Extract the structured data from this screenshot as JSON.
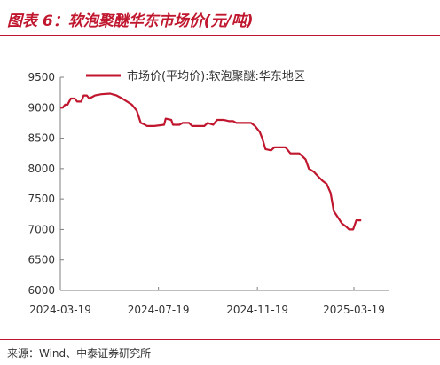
{
  "header": {
    "title": "图表 6：软泡聚醚华东市场价(元/吨)"
  },
  "footer": {
    "source": "来源：Wind、中泰证券研究所"
  },
  "colors": {
    "accent": "#c0172f",
    "line": "#c0172f",
    "axis": "#7f7f7f",
    "text": "#333333"
  },
  "chart_data": {
    "type": "line",
    "x_type": "date",
    "x_ticks": [
      "2024-03-19",
      "2024-07-19",
      "2024-11-19",
      "2025-03-19"
    ],
    "xlim": [
      "2024-03-19",
      "2025-05-01"
    ],
    "ylim": [
      6000,
      9500
    ],
    "y_ticks": [
      6000,
      6500,
      7000,
      7500,
      8000,
      8500,
      9000,
      9500
    ],
    "grid": false,
    "legend_position": "top",
    "series": [
      {
        "name": "市场价(平均价):软泡聚醚:华东地区",
        "points": [
          [
            "2024-03-19",
            9000
          ],
          [
            "2024-03-22",
            9000
          ],
          [
            "2024-03-25",
            9050
          ],
          [
            "2024-03-28",
            9050
          ],
          [
            "2024-04-01",
            9150
          ],
          [
            "2024-04-06",
            9150
          ],
          [
            "2024-04-09",
            9100
          ],
          [
            "2024-04-14",
            9100
          ],
          [
            "2024-04-17",
            9200
          ],
          [
            "2024-04-21",
            9200
          ],
          [
            "2024-04-24",
            9150
          ],
          [
            "2024-05-01",
            9200
          ],
          [
            "2024-05-09",
            9220
          ],
          [
            "2024-05-20",
            9230
          ],
          [
            "2024-05-28",
            9200
          ],
          [
            "2024-06-04",
            9150
          ],
          [
            "2024-06-10",
            9100
          ],
          [
            "2024-06-16",
            9050
          ],
          [
            "2024-06-22",
            8950
          ],
          [
            "2024-06-27",
            8750
          ],
          [
            "2024-07-01",
            8730
          ],
          [
            "2024-07-05",
            8700
          ],
          [
            "2024-07-14",
            8700
          ],
          [
            "2024-07-26",
            8720
          ],
          [
            "2024-07-28",
            8820
          ],
          [
            "2024-08-04",
            8800
          ],
          [
            "2024-08-06",
            8720
          ],
          [
            "2024-08-14",
            8720
          ],
          [
            "2024-08-18",
            8750
          ],
          [
            "2024-08-26",
            8750
          ],
          [
            "2024-08-30",
            8700
          ],
          [
            "2024-09-14",
            8700
          ],
          [
            "2024-09-18",
            8750
          ],
          [
            "2024-09-25",
            8720
          ],
          [
            "2024-09-30",
            8800
          ],
          [
            "2024-10-08",
            8800
          ],
          [
            "2024-10-15",
            8780
          ],
          [
            "2024-10-20",
            8780
          ],
          [
            "2024-10-24",
            8750
          ],
          [
            "2024-11-11",
            8750
          ],
          [
            "2024-11-16",
            8700
          ],
          [
            "2024-11-22",
            8600
          ],
          [
            "2024-11-25",
            8500
          ],
          [
            "2024-11-29",
            8320
          ],
          [
            "2024-12-06",
            8300
          ],
          [
            "2024-12-10",
            8350
          ],
          [
            "2024-12-24",
            8350
          ],
          [
            "2024-12-30",
            8250
          ],
          [
            "2025-01-10",
            8250
          ],
          [
            "2025-01-14",
            8200
          ],
          [
            "2025-01-18",
            8150
          ],
          [
            "2025-01-22",
            8000
          ],
          [
            "2025-01-28",
            7950
          ],
          [
            "2025-02-04",
            7850
          ],
          [
            "2025-02-08",
            7800
          ],
          [
            "2025-02-13",
            7750
          ],
          [
            "2025-02-18",
            7600
          ],
          [
            "2025-02-22",
            7300
          ],
          [
            "2025-02-27",
            7200
          ],
          [
            "2025-03-04",
            7100
          ],
          [
            "2025-03-09",
            7050
          ],
          [
            "2025-03-13",
            7000
          ],
          [
            "2025-03-18",
            7000
          ],
          [
            "2025-03-22",
            7150
          ],
          [
            "2025-03-28",
            7150
          ]
        ]
      }
    ]
  }
}
